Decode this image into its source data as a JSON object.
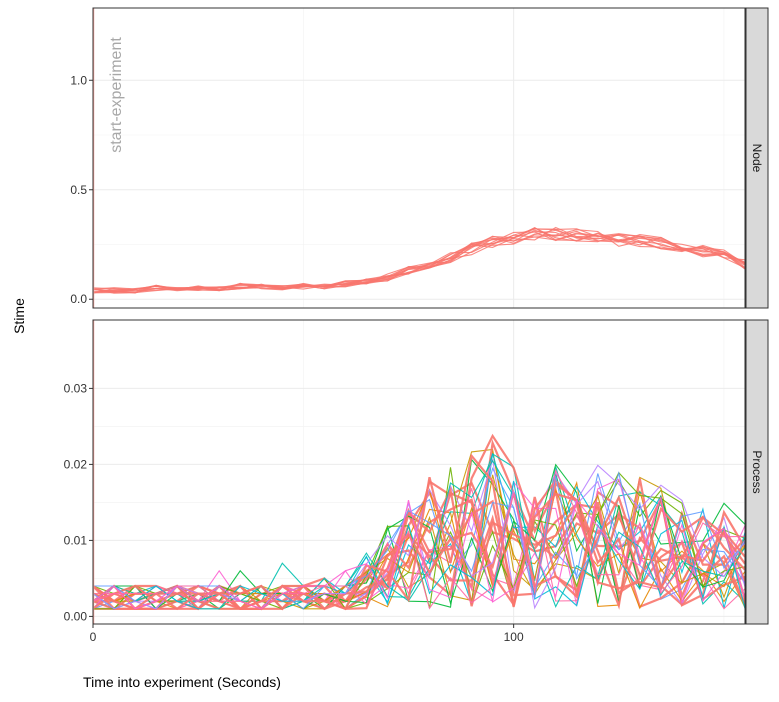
{
  "chart_data": {
    "type": "line",
    "x_axis": {
      "label": "Time into experiment (Seconds)",
      "range": [
        0,
        155
      ],
      "ticks": [
        0,
        100
      ],
      "tick_labels": [
        "0",
        "100"
      ]
    },
    "y_axis": {
      "label": "Stime"
    },
    "grid": true,
    "legend": "none",
    "annotation": {
      "text": "start-experiment",
      "x": 0
    },
    "panels": [
      {
        "strip": "Node",
        "ylim": [
          -0.04,
          1.33
        ],
        "y_ticks": [
          0.0,
          0.5,
          1.0
        ],
        "y_tick_labels": [
          "0.0",
          "0.5",
          "1.0"
        ],
        "series_color": "#f8766d",
        "series_count": 12,
        "x": [
          0,
          5,
          10,
          15,
          20,
          25,
          30,
          35,
          40,
          45,
          50,
          55,
          60,
          65,
          70,
          75,
          80,
          85,
          90,
          95,
          100,
          105,
          110,
          115,
          120,
          125,
          130,
          135,
          140,
          145,
          150,
          155
        ],
        "mean_values": [
          0.04,
          0.04,
          0.04,
          0.05,
          0.04,
          0.05,
          0.05,
          0.06,
          0.06,
          0.05,
          0.06,
          0.06,
          0.07,
          0.08,
          0.1,
          0.13,
          0.16,
          0.19,
          0.23,
          0.26,
          0.28,
          0.3,
          0.3,
          0.29,
          0.28,
          0.27,
          0.27,
          0.26,
          0.24,
          0.22,
          0.2,
          0.16
        ]
      },
      {
        "strip": "Process",
        "ylim": [
          -0.001,
          0.039
        ],
        "y_ticks": [
          0.0,
          0.01,
          0.02,
          0.03
        ],
        "y_tick_labels": [
          "0.00",
          "0.01",
          "0.02",
          "0.03"
        ],
        "series_count": 30,
        "palette": [
          "#f8766d",
          "#e58700",
          "#c99800",
          "#a3a500",
          "#6bb100",
          "#00ba38",
          "#00bf7d",
          "#00c0af",
          "#00bcd8",
          "#00b0f6",
          "#619cff",
          "#b983ff",
          "#e76bf3",
          "#fd61d1",
          "#ff67a4"
        ],
        "x": [
          0,
          5,
          10,
          15,
          20,
          25,
          30,
          35,
          40,
          45,
          50,
          55,
          60,
          65,
          70,
          75,
          80,
          85,
          90,
          95,
          100,
          105,
          110,
          115,
          120,
          125,
          130,
          135,
          140,
          145,
          150,
          155
        ],
        "envelope_max": [
          0.004,
          0.004,
          0.004,
          0.004,
          0.004,
          0.005,
          0.006,
          0.006,
          0.008,
          0.007,
          0.005,
          0.005,
          0.006,
          0.009,
          0.012,
          0.016,
          0.019,
          0.02,
          0.022,
          0.024,
          0.02,
          0.019,
          0.02,
          0.018,
          0.02,
          0.022,
          0.019,
          0.018,
          0.016,
          0.015,
          0.016,
          0.014
        ]
      }
    ]
  }
}
